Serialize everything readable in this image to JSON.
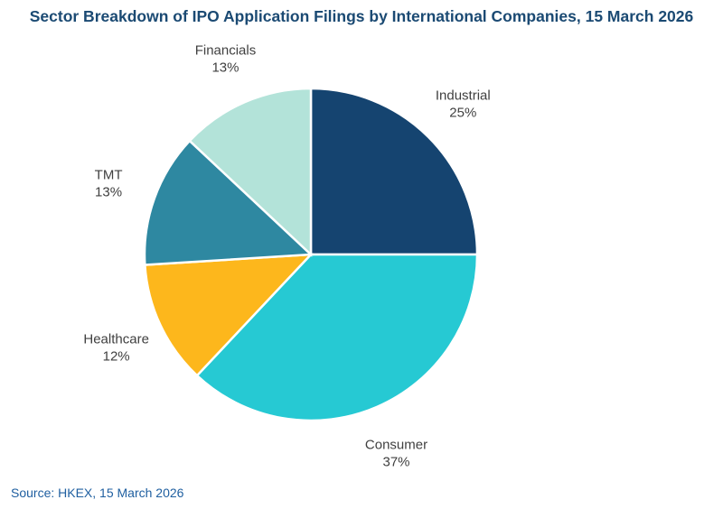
{
  "chart_data": {
    "type": "pie",
    "title": "Sector Breakdown of IPO Application Filings by International Companies, 15 March 2026",
    "source": "Source: HKEX, 15 March 2026",
    "start_angle": "12 o'clock",
    "direction": "clockwise",
    "slices": [
      {
        "label": "Industrial",
        "value": 25,
        "display": "25%",
        "color": "#154470"
      },
      {
        "label": "Consumer",
        "value": 37,
        "display": "37%",
        "color": "#26C9D3"
      },
      {
        "label": "Healthcare",
        "value": 12,
        "display": "12%",
        "color": "#FDB71C"
      },
      {
        "label": "TMT",
        "value": 13,
        "display": "13%",
        "color": "#2E88A1"
      },
      {
        "label": "Financials",
        "value": 13,
        "display": "13%",
        "color": "#B3E3D9"
      }
    ]
  }
}
